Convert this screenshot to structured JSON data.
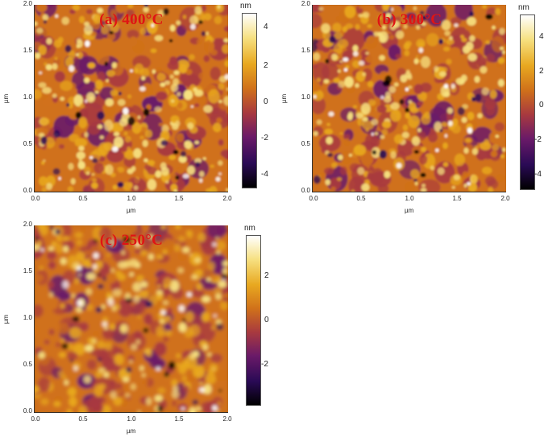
{
  "colormap": [
    "#000000",
    "#2a0a55",
    "#6a1a68",
    "#a83a3f",
    "#d0711a",
    "#e8a820",
    "#f6e080",
    "#ffffff"
  ],
  "axis_unit": "µm",
  "x_ticks": [
    "0.0",
    "0.5",
    "1.0",
    "1.5",
    "2.0"
  ],
  "y_ticks": [
    "2.0",
    "1.5",
    "1.0",
    "0.5",
    "0.0"
  ],
  "panels": [
    {
      "id": "a",
      "label": "(a) 400°C",
      "colorbar": {
        "unit": "nm",
        "ticks": [
          "4",
          "2",
          "0",
          "-2",
          "-4"
        ]
      }
    },
    {
      "id": "b",
      "label": "(b) 300°C",
      "colorbar": {
        "unit": "nm",
        "ticks": [
          "4",
          "2",
          "0",
          "-2",
          "-4"
        ]
      }
    },
    {
      "id": "c",
      "label": "(c) 250°C",
      "colorbar": {
        "unit": "nm",
        "ticks": [
          "2",
          "0",
          "-2"
        ]
      }
    }
  ]
}
